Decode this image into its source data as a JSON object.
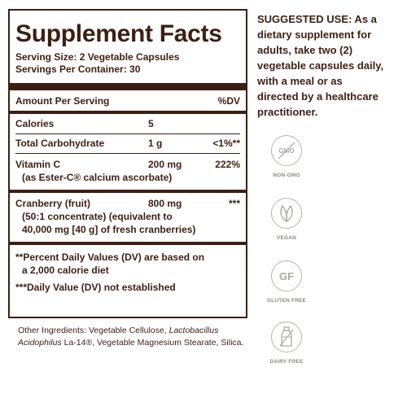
{
  "facts": {
    "title": "Supplement Facts",
    "serving_size": "Serving Size: 2 Vegetable Capsules",
    "servings_per_container": "Servings Per Container: 30",
    "header_left": "Amount Per Serving",
    "header_right": "%DV",
    "rows": [
      {
        "name": "Calories",
        "amount": "5",
        "dv": ""
      },
      {
        "name": "Total Carbohydrate",
        "amount": "1 g",
        "dv": "<1%**"
      },
      {
        "name": "Vitamin C",
        "amount": "200 mg",
        "dv": "222%",
        "sub": "(as Ester-C® calcium ascorbate)"
      },
      {
        "name": "Cranberry (fruit)",
        "amount": "800 mg",
        "dv": "***",
        "sub_lines": [
          "(50:1 concentrate) (equivalent to",
          "40,000 mg [40 g] of fresh cranberries)"
        ]
      }
    ],
    "footnote_1_line1": "**Percent Daily Values (DV) are based on",
    "footnote_1_line2": "a 2,000 calorie diet",
    "footnote_2": "***Daily Value (DV) not established"
  },
  "other_ingredients": {
    "prefix": "Other Ingredients: Vegetable Cellulose, ",
    "italic": "Lactobacillus Acidophilus",
    "suffix": " La-14®, Vegetable Magnesium Stearate, Silica."
  },
  "suggested_use": {
    "lines": [
      "SUGGESTED USE: As a",
      "dietary supplement for",
      "adults, take two (2)",
      "vegetable capsules daily,",
      "with a meal or as",
      "directed by a healthcare",
      "practitioner."
    ]
  },
  "badges": [
    {
      "icon": "gmo-icon",
      "icon_text": "GMO",
      "label": "NON-GMO"
    },
    {
      "icon": "leaf-icon",
      "label": "VEGAN"
    },
    {
      "icon": "gf-icon",
      "icon_text": "GF",
      "label": "GLUTEN FREE"
    },
    {
      "icon": "milk-bottle-icon",
      "label": "DAIRY FREE"
    }
  ],
  "colors": {
    "text": "#3d1f12",
    "badge": "#b0a8a2"
  }
}
